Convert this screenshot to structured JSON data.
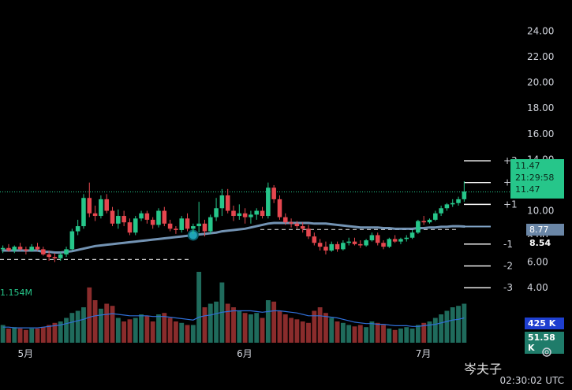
{
  "chart_data": {
    "type": "candlestick",
    "price_axis": {
      "ticks": [
        "24.00",
        "22.00",
        "20.00",
        "18.00",
        "16.00",
        "14.00",
        "12.00",
        "10.00",
        "8.00",
        "6.00",
        "4.00"
      ],
      "tick_values": [
        24,
        22,
        20,
        18,
        16,
        14,
        12,
        10,
        8,
        6,
        4
      ],
      "ylim": [
        3.4,
        25.2
      ]
    },
    "x_axis": {
      "months": [
        "5月",
        "6月",
        "7月"
      ]
    },
    "candles": [
      [
        7.0,
        7.3,
        6.7,
        7.1
      ],
      [
        7.1,
        7.4,
        6.8,
        6.9
      ],
      [
        6.9,
        7.3,
        6.7,
        7.2
      ],
      [
        7.2,
        7.5,
        6.9,
        7.0
      ],
      [
        7.0,
        7.2,
        6.6,
        6.9
      ],
      [
        6.9,
        7.4,
        6.8,
        7.2
      ],
      [
        7.2,
        7.5,
        6.9,
        7.0
      ],
      [
        7.0,
        7.2,
        6.5,
        6.6
      ],
      [
        6.6,
        6.9,
        6.1,
        6.4
      ],
      [
        6.4,
        6.7,
        6.0,
        6.3
      ],
      [
        6.3,
        6.8,
        6.1,
        6.6
      ],
      [
        6.6,
        7.2,
        6.4,
        7.0
      ],
      [
        7.0,
        8.6,
        6.9,
        8.4
      ],
      [
        8.4,
        9.3,
        8.1,
        8.8
      ],
      [
        8.8,
        11.3,
        8.6,
        11.0
      ],
      [
        11.0,
        12.2,
        9.5,
        9.8
      ],
      [
        9.8,
        10.4,
        9.2,
        9.6
      ],
      [
        9.6,
        11.2,
        9.4,
        10.9
      ],
      [
        10.9,
        11.3,
        9.8,
        10.0
      ],
      [
        10.0,
        10.3,
        8.8,
        9.0
      ],
      [
        9.0,
        10.1,
        8.6,
        9.6
      ],
      [
        9.6,
        10.0,
        8.8,
        9.1
      ],
      [
        9.1,
        9.4,
        8.1,
        8.3
      ],
      [
        8.3,
        9.6,
        8.1,
        9.4
      ],
      [
        9.4,
        10.0,
        9.2,
        9.8
      ],
      [
        9.8,
        10.0,
        9.0,
        9.3
      ],
      [
        9.3,
        9.5,
        8.6,
        8.9
      ],
      [
        8.9,
        10.2,
        8.7,
        10.0
      ],
      [
        10.0,
        10.3,
        8.8,
        9.0
      ],
      [
        9.0,
        9.3,
        8.4,
        8.6
      ],
      [
        8.6,
        8.8,
        8.2,
        8.5
      ],
      [
        8.5,
        9.6,
        8.3,
        9.4
      ],
      [
        9.4,
        9.8,
        8.4,
        8.6
      ],
      [
        8.6,
        9.0,
        8.2,
        8.8
      ],
      [
        8.8,
        10.7,
        8.3,
        9.0
      ],
      [
        9.0,
        9.3,
        8.0,
        8.4
      ],
      [
        8.4,
        9.7,
        8.2,
        9.5
      ],
      [
        9.5,
        11.0,
        9.2,
        10.2
      ],
      [
        10.2,
        11.7,
        9.6,
        11.2
      ],
      [
        11.2,
        11.7,
        9.8,
        10.0
      ],
      [
        10.0,
        10.4,
        9.2,
        9.6
      ],
      [
        9.6,
        10.5,
        9.3,
        9.8
      ],
      [
        9.8,
        10.2,
        9.0,
        9.5
      ],
      [
        9.5,
        10.0,
        9.0,
        9.7
      ],
      [
        9.7,
        10.2,
        9.3,
        10.0
      ],
      [
        10.0,
        10.3,
        9.4,
        9.6
      ],
      [
        9.6,
        12.2,
        9.4,
        11.8
      ],
      [
        11.8,
        12.0,
        10.6,
        10.9
      ],
      [
        10.9,
        11.2,
        9.3,
        9.5
      ],
      [
        9.5,
        9.8,
        8.9,
        9.1
      ],
      [
        9.1,
        9.4,
        8.7,
        9.0
      ],
      [
        9.0,
        9.2,
        8.6,
        8.8
      ],
      [
        8.8,
        9.1,
        8.3,
        8.6
      ],
      [
        8.6,
        8.9,
        7.8,
        8.0
      ],
      [
        8.0,
        8.3,
        7.3,
        7.5
      ],
      [
        7.5,
        7.8,
        6.9,
        7.2
      ],
      [
        7.2,
        7.6,
        6.6,
        6.9
      ],
      [
        6.9,
        7.6,
        6.8,
        7.4
      ],
      [
        7.4,
        7.6,
        6.8,
        7.0
      ],
      [
        7.0,
        7.7,
        6.9,
        7.5
      ],
      [
        7.5,
        7.9,
        7.3,
        7.6
      ],
      [
        7.6,
        7.9,
        7.3,
        7.4
      ],
      [
        7.4,
        7.7,
        7.1,
        7.3
      ],
      [
        7.3,
        7.8,
        7.2,
        7.7
      ],
      [
        7.7,
        8.3,
        7.6,
        8.1
      ],
      [
        8.1,
        8.3,
        7.3,
        7.5
      ],
      [
        7.5,
        7.7,
        7.0,
        7.2
      ],
      [
        7.2,
        7.9,
        7.1,
        7.8
      ],
      [
        7.8,
        8.1,
        7.5,
        7.6
      ],
      [
        7.6,
        7.9,
        7.4,
        7.8
      ],
      [
        7.8,
        8.1,
        7.6,
        7.9
      ],
      [
        7.9,
        8.5,
        7.8,
        8.3
      ],
      [
        8.3,
        9.3,
        8.2,
        9.2
      ],
      [
        9.2,
        9.6,
        8.9,
        9.1
      ],
      [
        9.1,
        9.4,
        9.0,
        9.3
      ],
      [
        9.3,
        10.0,
        9.2,
        9.8
      ],
      [
        9.8,
        10.4,
        9.6,
        10.2
      ],
      [
        10.2,
        10.6,
        10.0,
        10.5
      ],
      [
        10.5,
        10.9,
        10.3,
        10.6
      ],
      [
        10.6,
        11.1,
        10.4,
        10.9
      ],
      [
        10.9,
        12.3,
        10.7,
        11.5
      ]
    ],
    "volumes": [
      0.25,
      0.2,
      0.22,
      0.2,
      0.18,
      0.2,
      0.2,
      0.22,
      0.25,
      0.28,
      0.3,
      0.35,
      0.42,
      0.45,
      0.5,
      0.78,
      0.6,
      0.48,
      0.55,
      0.52,
      0.35,
      0.3,
      0.33,
      0.35,
      0.4,
      0.38,
      0.3,
      0.4,
      0.42,
      0.35,
      0.3,
      0.28,
      0.25,
      0.25,
      1.0,
      0.5,
      0.55,
      0.58,
      0.85,
      0.55,
      0.5,
      0.45,
      0.42,
      0.4,
      0.42,
      0.35,
      0.6,
      0.58,
      0.45,
      0.4,
      0.35,
      0.33,
      0.3,
      0.28,
      0.45,
      0.5,
      0.42,
      0.35,
      0.3,
      0.28,
      0.25,
      0.23,
      0.25,
      0.22,
      0.3,
      0.28,
      0.25,
      0.2,
      0.18,
      0.2,
      0.22,
      0.2,
      0.25,
      0.28,
      0.3,
      0.35,
      0.4,
      0.45,
      0.5,
      0.52,
      0.55
    ],
    "volume_ma": [
      0.22,
      0.22,
      0.21,
      0.21,
      0.21,
      0.21,
      0.21,
      0.22,
      0.23,
      0.24,
      0.25,
      0.27,
      0.29,
      0.31,
      0.33,
      0.36,
      0.38,
      0.39,
      0.4,
      0.41,
      0.4,
      0.39,
      0.38,
      0.38,
      0.38,
      0.38,
      0.37,
      0.37,
      0.37,
      0.36,
      0.35,
      0.34,
      0.33,
      0.32,
      0.36,
      0.38,
      0.39,
      0.41,
      0.43,
      0.44,
      0.45,
      0.45,
      0.45,
      0.45,
      0.44,
      0.43,
      0.44,
      0.45,
      0.45,
      0.44,
      0.43,
      0.42,
      0.4,
      0.38,
      0.38,
      0.38,
      0.37,
      0.36,
      0.35,
      0.33,
      0.31,
      0.29,
      0.28,
      0.27,
      0.27,
      0.26,
      0.26,
      0.25,
      0.24,
      0.24,
      0.24,
      0.23,
      0.23,
      0.24,
      0.25,
      0.26,
      0.28,
      0.3,
      0.32,
      0.33,
      0.35
    ],
    "ma_line": [
      6.9,
      6.9,
      6.9,
      6.9,
      6.9,
      6.9,
      6.9,
      6.8,
      6.8,
      6.75,
      6.75,
      6.8,
      6.85,
      6.95,
      7.05,
      7.15,
      7.25,
      7.3,
      7.35,
      7.4,
      7.45,
      7.5,
      7.55,
      7.6,
      7.65,
      7.7,
      7.75,
      7.8,
      7.85,
      7.9,
      7.95,
      8.0,
      8.05,
      8.1,
      8.15,
      8.2,
      8.25,
      8.3,
      8.4,
      8.45,
      8.5,
      8.55,
      8.6,
      8.7,
      8.8,
      8.9,
      9.0,
      9.05,
      9.05,
      9.05,
      9.05,
      9.05,
      9.05,
      9.05,
      9.0,
      9.0,
      9.0,
      8.95,
      8.9,
      8.85,
      8.8,
      8.75,
      8.7,
      8.7,
      8.7,
      8.7,
      8.65,
      8.65,
      8.6,
      8.6,
      8.6,
      8.6,
      8.65,
      8.65,
      8.7,
      8.7,
      8.75,
      8.75,
      8.8,
      8.8,
      8.77
    ],
    "current_price": 11.47,
    "level_labels": [
      "+3",
      "+2",
      "+1",
      "-1",
      "-2",
      "-3"
    ],
    "level_values": [
      13.9,
      12.2,
      10.5,
      7.4,
      5.7,
      4.0
    ],
    "support_level": 6.2,
    "resistance_level": 8.54
  },
  "badges": {
    "price": "11.47",
    "countdown": "21:29:58",
    "price2": "11.47",
    "ma": "8.77",
    "low": "8.54",
    "vol": "425 K",
    "vol2": "51.58 K"
  },
  "volume_left_label": "1.154M",
  "timestamp": "02:30:02 UTC",
  "watermark": "岑夫子",
  "colors": {
    "up": "#26c68a",
    "down": "#e5474f",
    "vol_up": "#1f6b5c",
    "vol_down": "#8a2c2c",
    "ma": "#7fa3c6",
    "vol_ma": "#2f6fd8",
    "background": "#000000"
  }
}
